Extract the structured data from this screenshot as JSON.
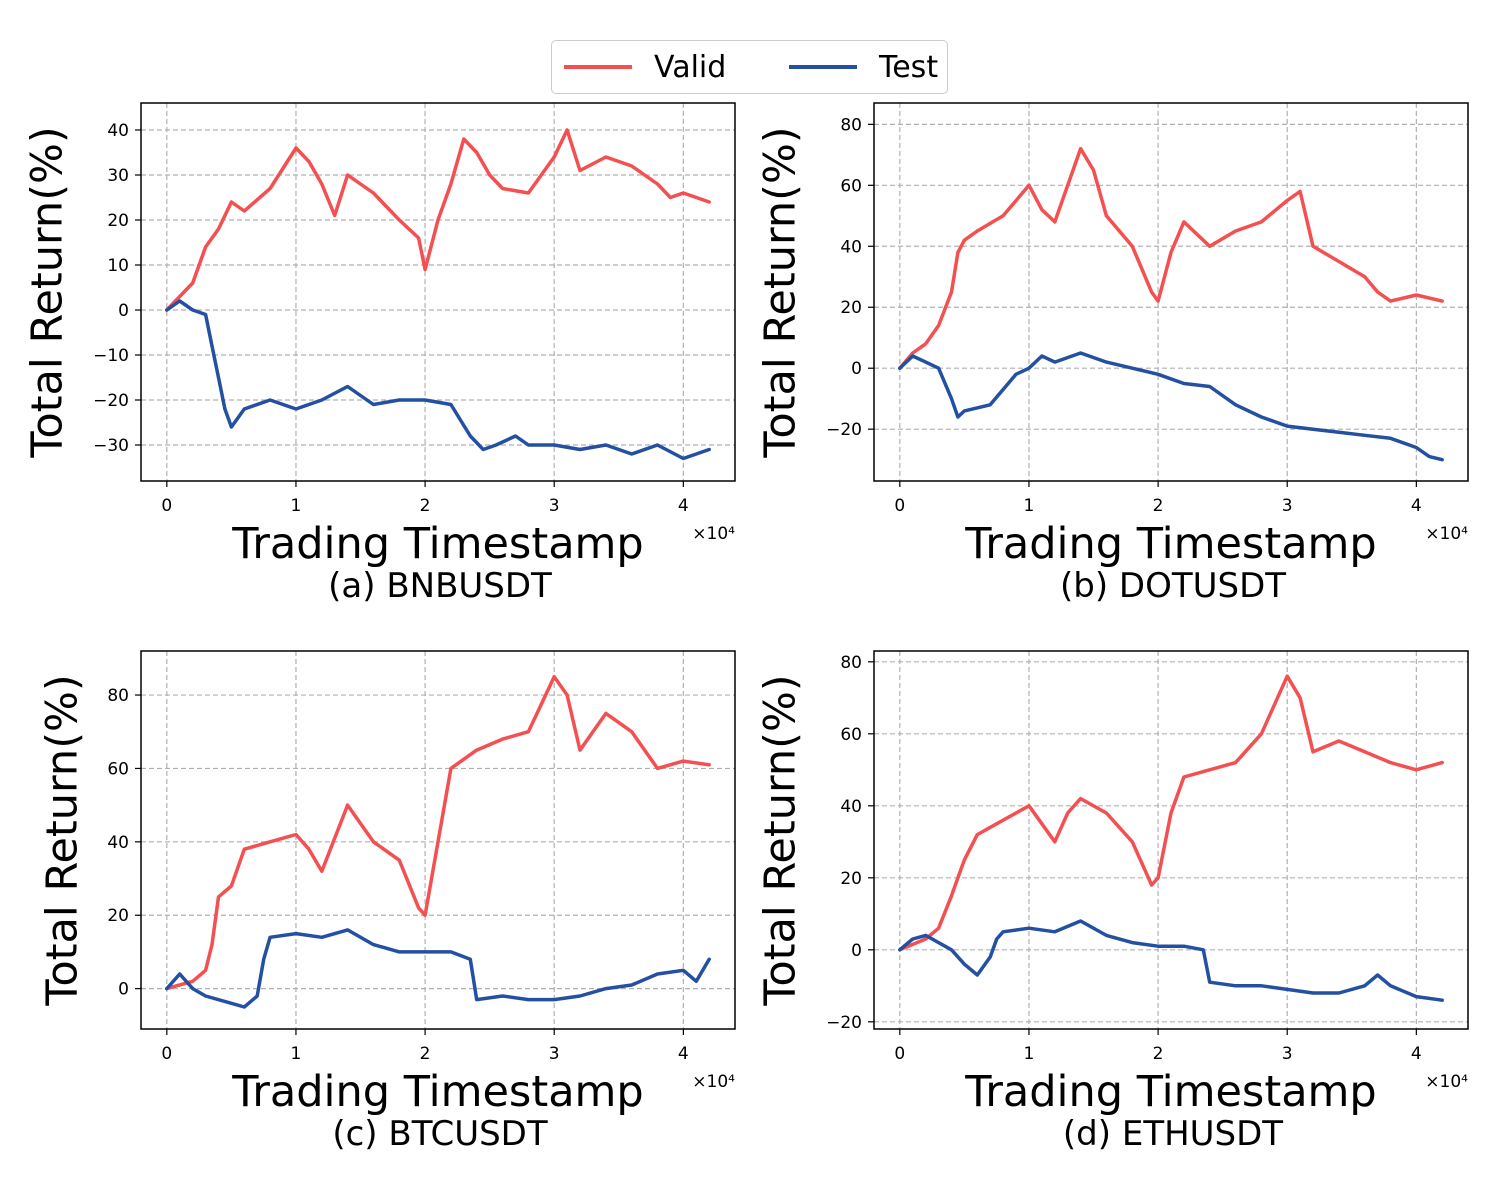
{
  "legend": {
    "items": [
      {
        "label": "Valid",
        "color": "#f44f51"
      },
      {
        "label": "Test",
        "color": "#2450a2"
      }
    ]
  },
  "chart_data": [
    {
      "type": "line",
      "title": "(a) BNBUSDT",
      "xlabel": "Trading Timestamp",
      "ylabel": "Total Return(%)",
      "x_multiplier": "×10⁴",
      "xlim": [
        -0.2,
        4.4
      ],
      "ylim": [
        -38,
        46
      ],
      "xticks": [
        0,
        1,
        2,
        3,
        4
      ],
      "yticks": [
        -30,
        -20,
        -10,
        0,
        10,
        20,
        30,
        40
      ],
      "grid": true,
      "series": [
        {
          "name": "Valid",
          "color": "#f44f51",
          "x": [
            0,
            0.1,
            0.2,
            0.3,
            0.4,
            0.5,
            0.6,
            0.8,
            1.0,
            1.1,
            1.2,
            1.3,
            1.4,
            1.6,
            1.8,
            1.95,
            2.0,
            2.1,
            2.2,
            2.3,
            2.4,
            2.5,
            2.6,
            2.8,
            2.9,
            3.0,
            3.1,
            3.2,
            3.4,
            3.6,
            3.7,
            3.8,
            3.9,
            4.0,
            4.1,
            4.2
          ],
          "y": [
            0,
            3,
            6,
            14,
            18,
            24,
            22,
            27,
            36,
            33,
            28,
            21,
            30,
            26,
            20,
            16,
            9,
            20,
            28,
            38,
            35,
            30,
            27,
            26,
            30,
            34,
            40,
            31,
            34,
            32,
            30,
            28,
            25,
            26,
            25,
            24
          ]
        },
        {
          "name": "Test",
          "color": "#2450a2",
          "x": [
            0,
            0.1,
            0.2,
            0.3,
            0.35,
            0.4,
            0.45,
            0.5,
            0.6,
            0.8,
            1.0,
            1.2,
            1.4,
            1.6,
            1.8,
            2.0,
            2.2,
            2.35,
            2.45,
            2.55,
            2.7,
            2.8,
            3.0,
            3.2,
            3.4,
            3.6,
            3.8,
            4.0,
            4.2
          ],
          "y": [
            0,
            2,
            0,
            -1,
            -8,
            -15,
            -22,
            -26,
            -22,
            -20,
            -22,
            -20,
            -17,
            -21,
            -20,
            -20,
            -21,
            -28,
            -31,
            -30,
            -28,
            -30,
            -30,
            -31,
            -30,
            -32,
            -30,
            -33,
            -31
          ]
        }
      ]
    },
    {
      "type": "line",
      "title": "(b) DOTUSDT",
      "xlabel": "Trading Timestamp",
      "ylabel": "Total Return(%)",
      "x_multiplier": "×10⁴",
      "xlim": [
        -0.2,
        4.4
      ],
      "ylim": [
        -37,
        87
      ],
      "xticks": [
        0,
        1,
        2,
        3,
        4
      ],
      "yticks": [
        -20,
        0,
        20,
        40,
        60,
        80
      ],
      "grid": true,
      "series": [
        {
          "name": "Valid",
          "color": "#f44f51",
          "x": [
            0,
            0.1,
            0.2,
            0.3,
            0.4,
            0.45,
            0.5,
            0.6,
            0.8,
            1.0,
            1.1,
            1.2,
            1.4,
            1.5,
            1.6,
            1.8,
            1.95,
            2.0,
            2.1,
            2.2,
            2.4,
            2.6,
            2.8,
            3.0,
            3.1,
            3.2,
            3.4,
            3.6,
            3.7,
            3.8,
            4.0,
            4.2
          ],
          "y": [
            0,
            5,
            8,
            14,
            25,
            38,
            42,
            45,
            50,
            60,
            52,
            48,
            72,
            65,
            50,
            40,
            25,
            22,
            38,
            48,
            40,
            45,
            48,
            55,
            58,
            40,
            35,
            30,
            25,
            22,
            24,
            22
          ]
        },
        {
          "name": "Test",
          "color": "#2450a2",
          "x": [
            0,
            0.1,
            0.2,
            0.3,
            0.4,
            0.45,
            0.5,
            0.7,
            0.9,
            1.0,
            1.1,
            1.2,
            1.4,
            1.6,
            1.8,
            2.0,
            2.2,
            2.4,
            2.6,
            2.8,
            3.0,
            3.2,
            3.4,
            3.6,
            3.8,
            4.0,
            4.1,
            4.2
          ],
          "y": [
            0,
            4,
            2,
            0,
            -10,
            -16,
            -14,
            -12,
            -2,
            0,
            4,
            2,
            5,
            2,
            0,
            -2,
            -5,
            -6,
            -12,
            -16,
            -19,
            -20,
            -21,
            -22,
            -23,
            -26,
            -29,
            -30
          ]
        }
      ]
    },
    {
      "type": "line",
      "title": "(c) BTCUSDT",
      "xlabel": "Trading Timestamp",
      "ylabel": "Total Return(%)",
      "x_multiplier": "×10⁴",
      "xlim": [
        -0.2,
        4.4
      ],
      "ylim": [
        -11,
        92
      ],
      "xticks": [
        0,
        1,
        2,
        3,
        4
      ],
      "yticks": [
        0,
        20,
        40,
        60,
        80
      ],
      "grid": true,
      "series": [
        {
          "name": "Valid",
          "color": "#f44f51",
          "x": [
            0,
            0.2,
            0.3,
            0.35,
            0.4,
            0.5,
            0.6,
            0.8,
            1.0,
            1.1,
            1.2,
            1.4,
            1.5,
            1.6,
            1.8,
            1.95,
            2.0,
            2.1,
            2.2,
            2.4,
            2.6,
            2.8,
            3.0,
            3.1,
            3.2,
            3.4,
            3.6,
            3.7,
            3.8,
            4.0,
            4.2
          ],
          "y": [
            0,
            2,
            5,
            12,
            25,
            28,
            38,
            40,
            42,
            38,
            32,
            50,
            45,
            40,
            35,
            22,
            20,
            40,
            60,
            65,
            68,
            70,
            85,
            80,
            65,
            75,
            70,
            65,
            60,
            62,
            61
          ]
        },
        {
          "name": "Test",
          "color": "#2450a2",
          "x": [
            0,
            0.1,
            0.2,
            0.3,
            0.5,
            0.6,
            0.7,
            0.75,
            0.8,
            1.0,
            1.2,
            1.4,
            1.6,
            1.8,
            2.0,
            2.2,
            2.35,
            2.4,
            2.6,
            2.8,
            3.0,
            3.2,
            3.4,
            3.6,
            3.8,
            4.0,
            4.1,
            4.2
          ],
          "y": [
            0,
            4,
            0,
            -2,
            -4,
            -5,
            -2,
            8,
            14,
            15,
            14,
            16,
            12,
            10,
            10,
            10,
            8,
            -3,
            -2,
            -3,
            -3,
            -2,
            0,
            1,
            4,
            5,
            2,
            8
          ]
        }
      ]
    },
    {
      "type": "line",
      "title": "(d) ETHUSDT",
      "xlabel": "Trading Timestamp",
      "ylabel": "Total Return(%)",
      "x_multiplier": "×10⁴",
      "xlim": [
        -0.2,
        4.4
      ],
      "ylim": [
        -22,
        83
      ],
      "xticks": [
        0,
        1,
        2,
        3,
        4
      ],
      "yticks": [
        -20,
        0,
        20,
        40,
        60,
        80
      ],
      "grid": true,
      "series": [
        {
          "name": "Valid",
          "color": "#f44f51",
          "x": [
            0,
            0.2,
            0.3,
            0.4,
            0.45,
            0.5,
            0.6,
            0.8,
            1.0,
            1.1,
            1.2,
            1.3,
            1.4,
            1.6,
            1.8,
            1.95,
            2.0,
            2.1,
            2.2,
            2.4,
            2.6,
            2.8,
            3.0,
            3.1,
            3.2,
            3.4,
            3.6,
            3.8,
            4.0,
            4.2
          ],
          "y": [
            0,
            3,
            6,
            15,
            20,
            25,
            32,
            36,
            40,
            35,
            30,
            38,
            42,
            38,
            30,
            18,
            20,
            38,
            48,
            50,
            52,
            60,
            76,
            70,
            55,
            58,
            55,
            52,
            50,
            52
          ]
        },
        {
          "name": "Test",
          "color": "#2450a2",
          "x": [
            0,
            0.1,
            0.2,
            0.3,
            0.4,
            0.5,
            0.6,
            0.7,
            0.75,
            0.8,
            1.0,
            1.2,
            1.4,
            1.6,
            1.8,
            2.0,
            2.2,
            2.35,
            2.4,
            2.6,
            2.8,
            3.0,
            3.2,
            3.4,
            3.6,
            3.7,
            3.8,
            4.0,
            4.2
          ],
          "y": [
            0,
            3,
            4,
            2,
            0,
            -4,
            -7,
            -2,
            3,
            5,
            6,
            5,
            8,
            4,
            2,
            1,
            1,
            0,
            -9,
            -10,
            -10,
            -11,
            -12,
            -12,
            -10,
            -7,
            -10,
            -13,
            -14
          ]
        }
      ]
    }
  ]
}
